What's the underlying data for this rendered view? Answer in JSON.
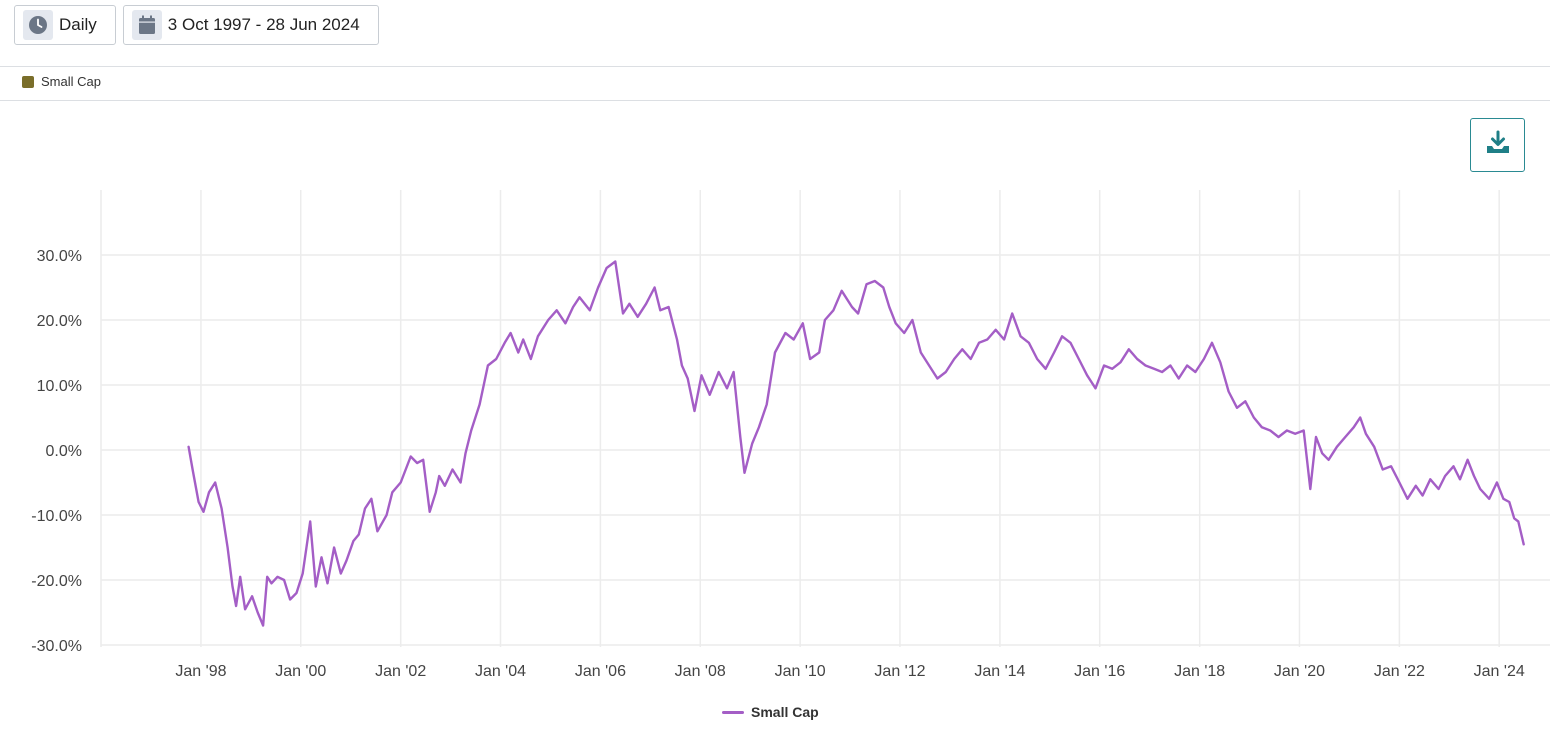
{
  "toolbar": {
    "frequency_label": "Daily",
    "date_range_label": "3 Oct 1997 - 28 Jun 2024"
  },
  "icons": {
    "frequency": "clock-icon",
    "date_range": "calendar-icon",
    "download": "download-icon"
  },
  "colors": {
    "series_line": "#a45ec6",
    "legend_swatch": "#7a6e2a",
    "download_accent": "#1f7f87",
    "grid": "#ececec"
  },
  "chart_data": {
    "type": "line",
    "title": "",
    "xlabel": "",
    "ylabel": "",
    "ylim": [
      -30,
      30
    ],
    "xlim": [
      "1996-01-01",
      "2024-12-01"
    ],
    "y_ticks": [
      "30.0%",
      "20.0%",
      "10.0%",
      "0.0%",
      "-10.0%",
      "-20.0%",
      "-30.0%"
    ],
    "x_ticks": [
      "Jan '98",
      "Jan '00",
      "Jan '02",
      "Jan '04",
      "Jan '06",
      "Jan '08",
      "Jan '10",
      "Jan '12",
      "Jan '14",
      "Jan '16",
      "Jan '18",
      "Jan '20",
      "Jan '22",
      "Jan '24"
    ],
    "legend": "bottom-center",
    "grid": true,
    "series": [
      {
        "name": "Small Cap",
        "color": "#a45ec6",
        "points": [
          [
            "1997-10-03",
            0.5
          ],
          [
            "1997-11-01",
            -3.0
          ],
          [
            "1997-12-15",
            -8.0
          ],
          [
            "1998-01-20",
            -9.5
          ],
          [
            "1998-03-01",
            -6.5
          ],
          [
            "1998-04-15",
            -5.0
          ],
          [
            "1998-06-01",
            -9.0
          ],
          [
            "1998-07-15",
            -15.0
          ],
          [
            "1998-08-20",
            -21.0
          ],
          [
            "1998-09-15",
            -24.0
          ],
          [
            "1998-10-15",
            -19.5
          ],
          [
            "1998-11-20",
            -24.5
          ],
          [
            "1999-01-10",
            -22.5
          ],
          [
            "1999-02-20",
            -25.0
          ],
          [
            "1999-04-01",
            -27.0
          ],
          [
            "1999-05-01",
            -19.5
          ],
          [
            "1999-06-01",
            -20.5
          ],
          [
            "1999-07-15",
            -19.5
          ],
          [
            "1999-09-01",
            -20.0
          ],
          [
            "1999-10-15",
            -23.0
          ],
          [
            "1999-12-01",
            -22.0
          ],
          [
            "2000-01-15",
            -19.0
          ],
          [
            "2000-03-10",
            -11.0
          ],
          [
            "2000-04-20",
            -21.0
          ],
          [
            "2000-06-01",
            -16.5
          ],
          [
            "2000-07-15",
            -20.5
          ],
          [
            "2000-09-01",
            -15.0
          ],
          [
            "2000-10-20",
            -19.0
          ],
          [
            "2000-12-01",
            -17.0
          ],
          [
            "2001-01-20",
            -14.0
          ],
          [
            "2001-03-01",
            -13.0
          ],
          [
            "2001-04-15",
            -9.0
          ],
          [
            "2001-06-01",
            -7.5
          ],
          [
            "2001-07-15",
            -12.5
          ],
          [
            "2001-09-20",
            -10.0
          ],
          [
            "2001-11-01",
            -6.5
          ],
          [
            "2002-01-01",
            -5.0
          ],
          [
            "2002-03-15",
            -1.0
          ],
          [
            "2002-05-01",
            -2.0
          ],
          [
            "2002-06-15",
            -1.5
          ],
          [
            "2002-08-01",
            -9.5
          ],
          [
            "2002-09-15",
            -6.5
          ],
          [
            "2002-10-10",
            -4.0
          ],
          [
            "2002-11-20",
            -5.5
          ],
          [
            "2003-01-15",
            -3.0
          ],
          [
            "2003-03-15",
            -5.0
          ],
          [
            "2003-04-20",
            -0.5
          ],
          [
            "2003-06-01",
            3.0
          ],
          [
            "2003-08-01",
            7.0
          ],
          [
            "2003-10-01",
            13.0
          ],
          [
            "2003-12-01",
            14.0
          ],
          [
            "2004-02-01",
            16.5
          ],
          [
            "2004-03-15",
            18.0
          ],
          [
            "2004-05-10",
            15.0
          ],
          [
            "2004-06-15",
            17.0
          ],
          [
            "2004-08-10",
            14.0
          ],
          [
            "2004-10-01",
            17.5
          ],
          [
            "2004-12-15",
            20.0
          ],
          [
            "2005-02-15",
            21.5
          ],
          [
            "2005-04-20",
            19.5
          ],
          [
            "2005-06-15",
            22.0
          ],
          [
            "2005-08-01",
            23.5
          ],
          [
            "2005-10-15",
            21.5
          ],
          [
            "2005-12-15",
            25.0
          ],
          [
            "2006-02-15",
            28.0
          ],
          [
            "2006-04-20",
            29.0
          ],
          [
            "2006-06-15",
            21.0
          ],
          [
            "2006-08-01",
            22.5
          ],
          [
            "2006-10-01",
            20.5
          ],
          [
            "2006-12-01",
            22.5
          ],
          [
            "2007-02-01",
            25.0
          ],
          [
            "2007-03-15",
            21.5
          ],
          [
            "2007-05-15",
            22.0
          ],
          [
            "2007-07-15",
            17.0
          ],
          [
            "2007-08-20",
            13.0
          ],
          [
            "2007-10-01",
            11.0
          ],
          [
            "2007-11-20",
            6.0
          ],
          [
            "2008-01-10",
            11.5
          ],
          [
            "2008-03-10",
            8.5
          ],
          [
            "2008-05-15",
            12.0
          ],
          [
            "2008-07-15",
            9.5
          ],
          [
            "2008-09-01",
            12.0
          ],
          [
            "2008-10-20",
            2.0
          ],
          [
            "2008-11-20",
            -3.5
          ],
          [
            "2009-01-15",
            1.0
          ],
          [
            "2009-03-05",
            3.5
          ],
          [
            "2009-05-01",
            7.0
          ],
          [
            "2009-07-01",
            15.0
          ],
          [
            "2009-09-15",
            18.0
          ],
          [
            "2009-11-15",
            17.0
          ],
          [
            "2010-01-20",
            19.5
          ],
          [
            "2010-03-15",
            14.0
          ],
          [
            "2010-05-20",
            15.0
          ],
          [
            "2010-07-01",
            20.0
          ],
          [
            "2010-09-01",
            21.5
          ],
          [
            "2010-11-01",
            24.5
          ],
          [
            "2011-01-15",
            22.0
          ],
          [
            "2011-03-01",
            21.0
          ],
          [
            "2011-05-01",
            25.5
          ],
          [
            "2011-07-01",
            26.0
          ],
          [
            "2011-09-01",
            25.0
          ],
          [
            "2011-10-15",
            22.0
          ],
          [
            "2011-12-01",
            19.5
          ],
          [
            "2012-02-01",
            18.0
          ],
          [
            "2012-04-01",
            20.0
          ],
          [
            "2012-06-01",
            15.0
          ],
          [
            "2012-08-01",
            13.0
          ],
          [
            "2012-10-01",
            11.0
          ],
          [
            "2012-12-01",
            12.0
          ],
          [
            "2013-02-01",
            14.0
          ],
          [
            "2013-04-01",
            15.5
          ],
          [
            "2013-06-01",
            14.0
          ],
          [
            "2013-08-01",
            16.5
          ],
          [
            "2013-10-01",
            17.0
          ],
          [
            "2013-12-01",
            18.5
          ],
          [
            "2014-02-01",
            17.0
          ],
          [
            "2014-04-01",
            21.0
          ],
          [
            "2014-06-01",
            17.5
          ],
          [
            "2014-08-01",
            16.5
          ],
          [
            "2014-10-01",
            14.0
          ],
          [
            "2014-12-01",
            12.5
          ],
          [
            "2015-02-01",
            15.0
          ],
          [
            "2015-04-01",
            17.5
          ],
          [
            "2015-06-01",
            16.5
          ],
          [
            "2015-08-01",
            14.0
          ],
          [
            "2015-10-01",
            11.5
          ],
          [
            "2015-12-01",
            9.5
          ],
          [
            "2016-02-01",
            13.0
          ],
          [
            "2016-04-01",
            12.5
          ],
          [
            "2016-06-01",
            13.5
          ],
          [
            "2016-08-01",
            15.5
          ],
          [
            "2016-10-01",
            14.0
          ],
          [
            "2016-12-01",
            13.0
          ],
          [
            "2017-02-01",
            12.5
          ],
          [
            "2017-04-01",
            12.0
          ],
          [
            "2017-06-01",
            13.0
          ],
          [
            "2017-08-01",
            11.0
          ],
          [
            "2017-10-01",
            13.0
          ],
          [
            "2017-12-01",
            12.0
          ],
          [
            "2018-02-01",
            14.0
          ],
          [
            "2018-04-01",
            16.5
          ],
          [
            "2018-06-01",
            13.5
          ],
          [
            "2018-08-01",
            9.0
          ],
          [
            "2018-10-01",
            6.5
          ],
          [
            "2018-12-01",
            7.5
          ],
          [
            "2019-02-01",
            5.0
          ],
          [
            "2019-04-01",
            3.5
          ],
          [
            "2019-06-01",
            3.0
          ],
          [
            "2019-08-01",
            2.0
          ],
          [
            "2019-10-01",
            3.0
          ],
          [
            "2019-12-01",
            2.5
          ],
          [
            "2020-02-01",
            3.0
          ],
          [
            "2020-03-20",
            -6.0
          ],
          [
            "2020-05-01",
            2.0
          ],
          [
            "2020-06-15",
            -0.5
          ],
          [
            "2020-08-01",
            -1.5
          ],
          [
            "2020-10-01",
            0.5
          ],
          [
            "2020-12-01",
            2.0
          ],
          [
            "2021-02-01",
            3.5
          ],
          [
            "2021-03-20",
            5.0
          ],
          [
            "2021-05-01",
            2.5
          ],
          [
            "2021-07-01",
            0.5
          ],
          [
            "2021-09-01",
            -3.0
          ],
          [
            "2021-11-01",
            -2.5
          ],
          [
            "2022-01-01",
            -5.0
          ],
          [
            "2022-03-01",
            -7.5
          ],
          [
            "2022-05-01",
            -5.5
          ],
          [
            "2022-06-20",
            -7.0
          ],
          [
            "2022-08-15",
            -4.5
          ],
          [
            "2022-10-15",
            -6.0
          ],
          [
            "2022-12-01",
            -4.0
          ],
          [
            "2023-02-01",
            -2.5
          ],
          [
            "2023-03-20",
            -4.5
          ],
          [
            "2023-05-15",
            -1.5
          ],
          [
            "2023-07-01",
            -4.0
          ],
          [
            "2023-08-15",
            -6.0
          ],
          [
            "2023-10-20",
            -7.5
          ],
          [
            "2023-12-15",
            -5.0
          ],
          [
            "2024-02-01",
            -7.5
          ],
          [
            "2024-03-15",
            -8.0
          ],
          [
            "2024-04-20",
            -10.5
          ],
          [
            "2024-05-20",
            -11.0
          ],
          [
            "2024-06-28",
            -14.5
          ]
        ]
      }
    ]
  }
}
